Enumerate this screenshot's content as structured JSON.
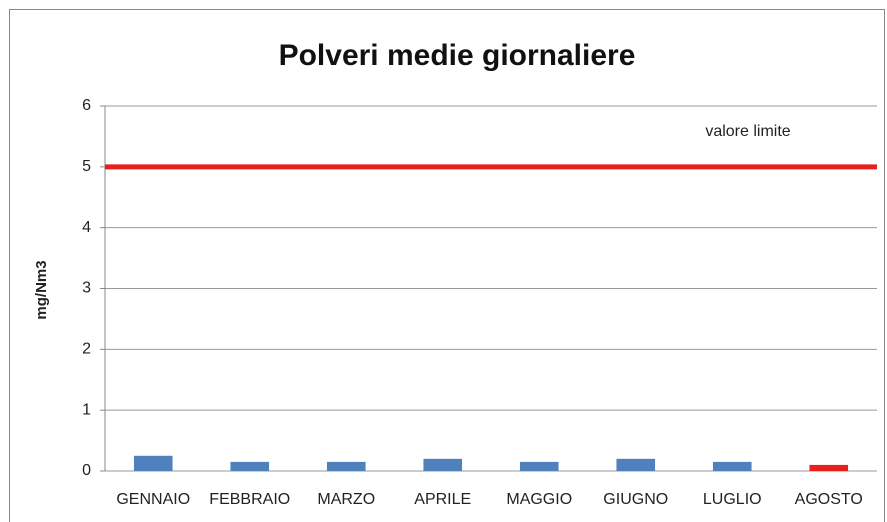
{
  "chart_data": {
    "type": "bar",
    "title": "Polveri medie giornaliere",
    "y_label": "mg/Nm3",
    "categories": [
      "GENNAIO",
      "FEBBRAIO",
      "MARZO",
      "APRILE",
      "MAGGIO",
      "GIUGNO",
      "LUGLIO",
      "AGOSTO"
    ],
    "values": [
      0.25,
      0.15,
      0.15,
      0.2,
      0.15,
      0.2,
      0.15,
      0.1
    ],
    "colors": [
      "#4f81bd",
      "#4f81bd",
      "#4f81bd",
      "#4f81bd",
      "#4f81bd",
      "#4f81bd",
      "#4f81bd",
      "#e8201c"
    ],
    "ylim": [
      0,
      6
    ],
    "yticks": [
      0,
      1,
      2,
      3,
      4,
      5,
      6
    ],
    "grid": true,
    "limit": {
      "value": 5,
      "label": "valore limite",
      "color": "#e8201c"
    }
  }
}
